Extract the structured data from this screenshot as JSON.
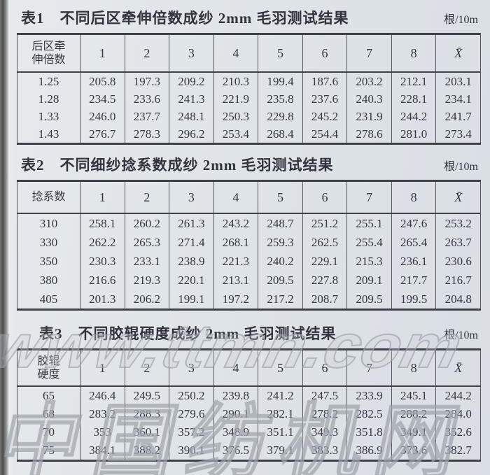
{
  "watermark": {
    "url": "www.ttmn.com",
    "cn": "中国纺机网"
  },
  "tables": [
    {
      "label": "表1",
      "title": "不同后区牵伸倍数成纱 2mm 毛羽测试结果",
      "unit": "根/10m",
      "row_header": "后区牵\n伸倍数",
      "columns": [
        "1",
        "2",
        "3",
        "4",
        "5",
        "6",
        "7",
        "8",
        "X̄"
      ],
      "rows": [
        {
          "key": "1.25",
          "values": [
            "205.8",
            "197.3",
            "209.2",
            "210.3",
            "199.4",
            "187.6",
            "203.2",
            "212.1",
            "203.1"
          ]
        },
        {
          "key": "1.28",
          "values": [
            "234.5",
            "233.6",
            "241.3",
            "221.9",
            "235.8",
            "237.6",
            "240.3",
            "228.1",
            "234.1"
          ]
        },
        {
          "key": "1.33",
          "values": [
            "246.0",
            "237.7",
            "248.1",
            "250.3",
            "229.8",
            "245.2",
            "231.9",
            "244.2",
            "241.7"
          ]
        },
        {
          "key": "1.43",
          "values": [
            "276.7",
            "278.3",
            "296.2",
            "253.4",
            "268.4",
            "254.4",
            "278.6",
            "281.0",
            "273.4"
          ]
        }
      ]
    },
    {
      "label": "表2",
      "title": "不同细纱捻系数成纱 2mm 毛羽测试结果",
      "unit": "根/10m",
      "row_header": "捻系数",
      "columns": [
        "1",
        "2",
        "3",
        "4",
        "5",
        "6",
        "7",
        "8",
        "X̄"
      ],
      "rows": [
        {
          "key": "310",
          "values": [
            "258.1",
            "260.2",
            "261.3",
            "243.2",
            "248.7",
            "251.2",
            "255.1",
            "247.6",
            "253.2"
          ]
        },
        {
          "key": "330",
          "values": [
            "262.2",
            "265.3",
            "271.4",
            "268.1",
            "259.3",
            "262.5",
            "255.4",
            "265.4",
            "263.7"
          ]
        },
        {
          "key": "350",
          "values": [
            "230.3",
            "233.1",
            "238.9",
            "221.3",
            "240.2",
            "229.1",
            "215.3",
            "236.1",
            "230.6"
          ]
        },
        {
          "key": "380",
          "values": [
            "216.6",
            "219.3",
            "220.1",
            "213.1",
            "209.5",
            "227.8",
            "209.1",
            "217.7",
            "216.7"
          ]
        },
        {
          "key": "405",
          "values": [
            "201.3",
            "206.2",
            "199.1",
            "197.2",
            "217.2",
            "208.7",
            "209.5",
            "199.5",
            "204.8"
          ]
        }
      ]
    },
    {
      "label": "表3",
      "title": "不同胶辊硬度成纱 2mm 毛羽测试结果",
      "unit": "根/10m",
      "row_header": "胶辊\n硬度",
      "columns": [
        "1",
        "2",
        "3",
        "4",
        "5",
        "6",
        "7",
        "8",
        "X̄"
      ],
      "rows": [
        {
          "key": "65",
          "values": [
            "246.4",
            "249.5",
            "250.2",
            "239.8",
            "241.2",
            "247.5",
            "233.9",
            "245.1",
            "244.2"
          ]
        },
        {
          "key": "68",
          "values": [
            "283.2",
            "288.3",
            "279.6",
            "290.1",
            "282.1",
            "278.2",
            "282.5",
            "288.2",
            "284.0"
          ]
        },
        {
          "key": "70",
          "values": [
            "353",
            "360.1",
            "357.2",
            "348.9",
            "351.1",
            "349.3",
            "351.8",
            "349.1",
            "352.6"
          ]
        },
        {
          "key": "75",
          "values": [
            "384.1",
            "388.2",
            "390.1",
            "376.5",
            "379.1",
            "383.3",
            "386.9",
            "373.6",
            "382.7"
          ]
        }
      ]
    }
  ]
}
